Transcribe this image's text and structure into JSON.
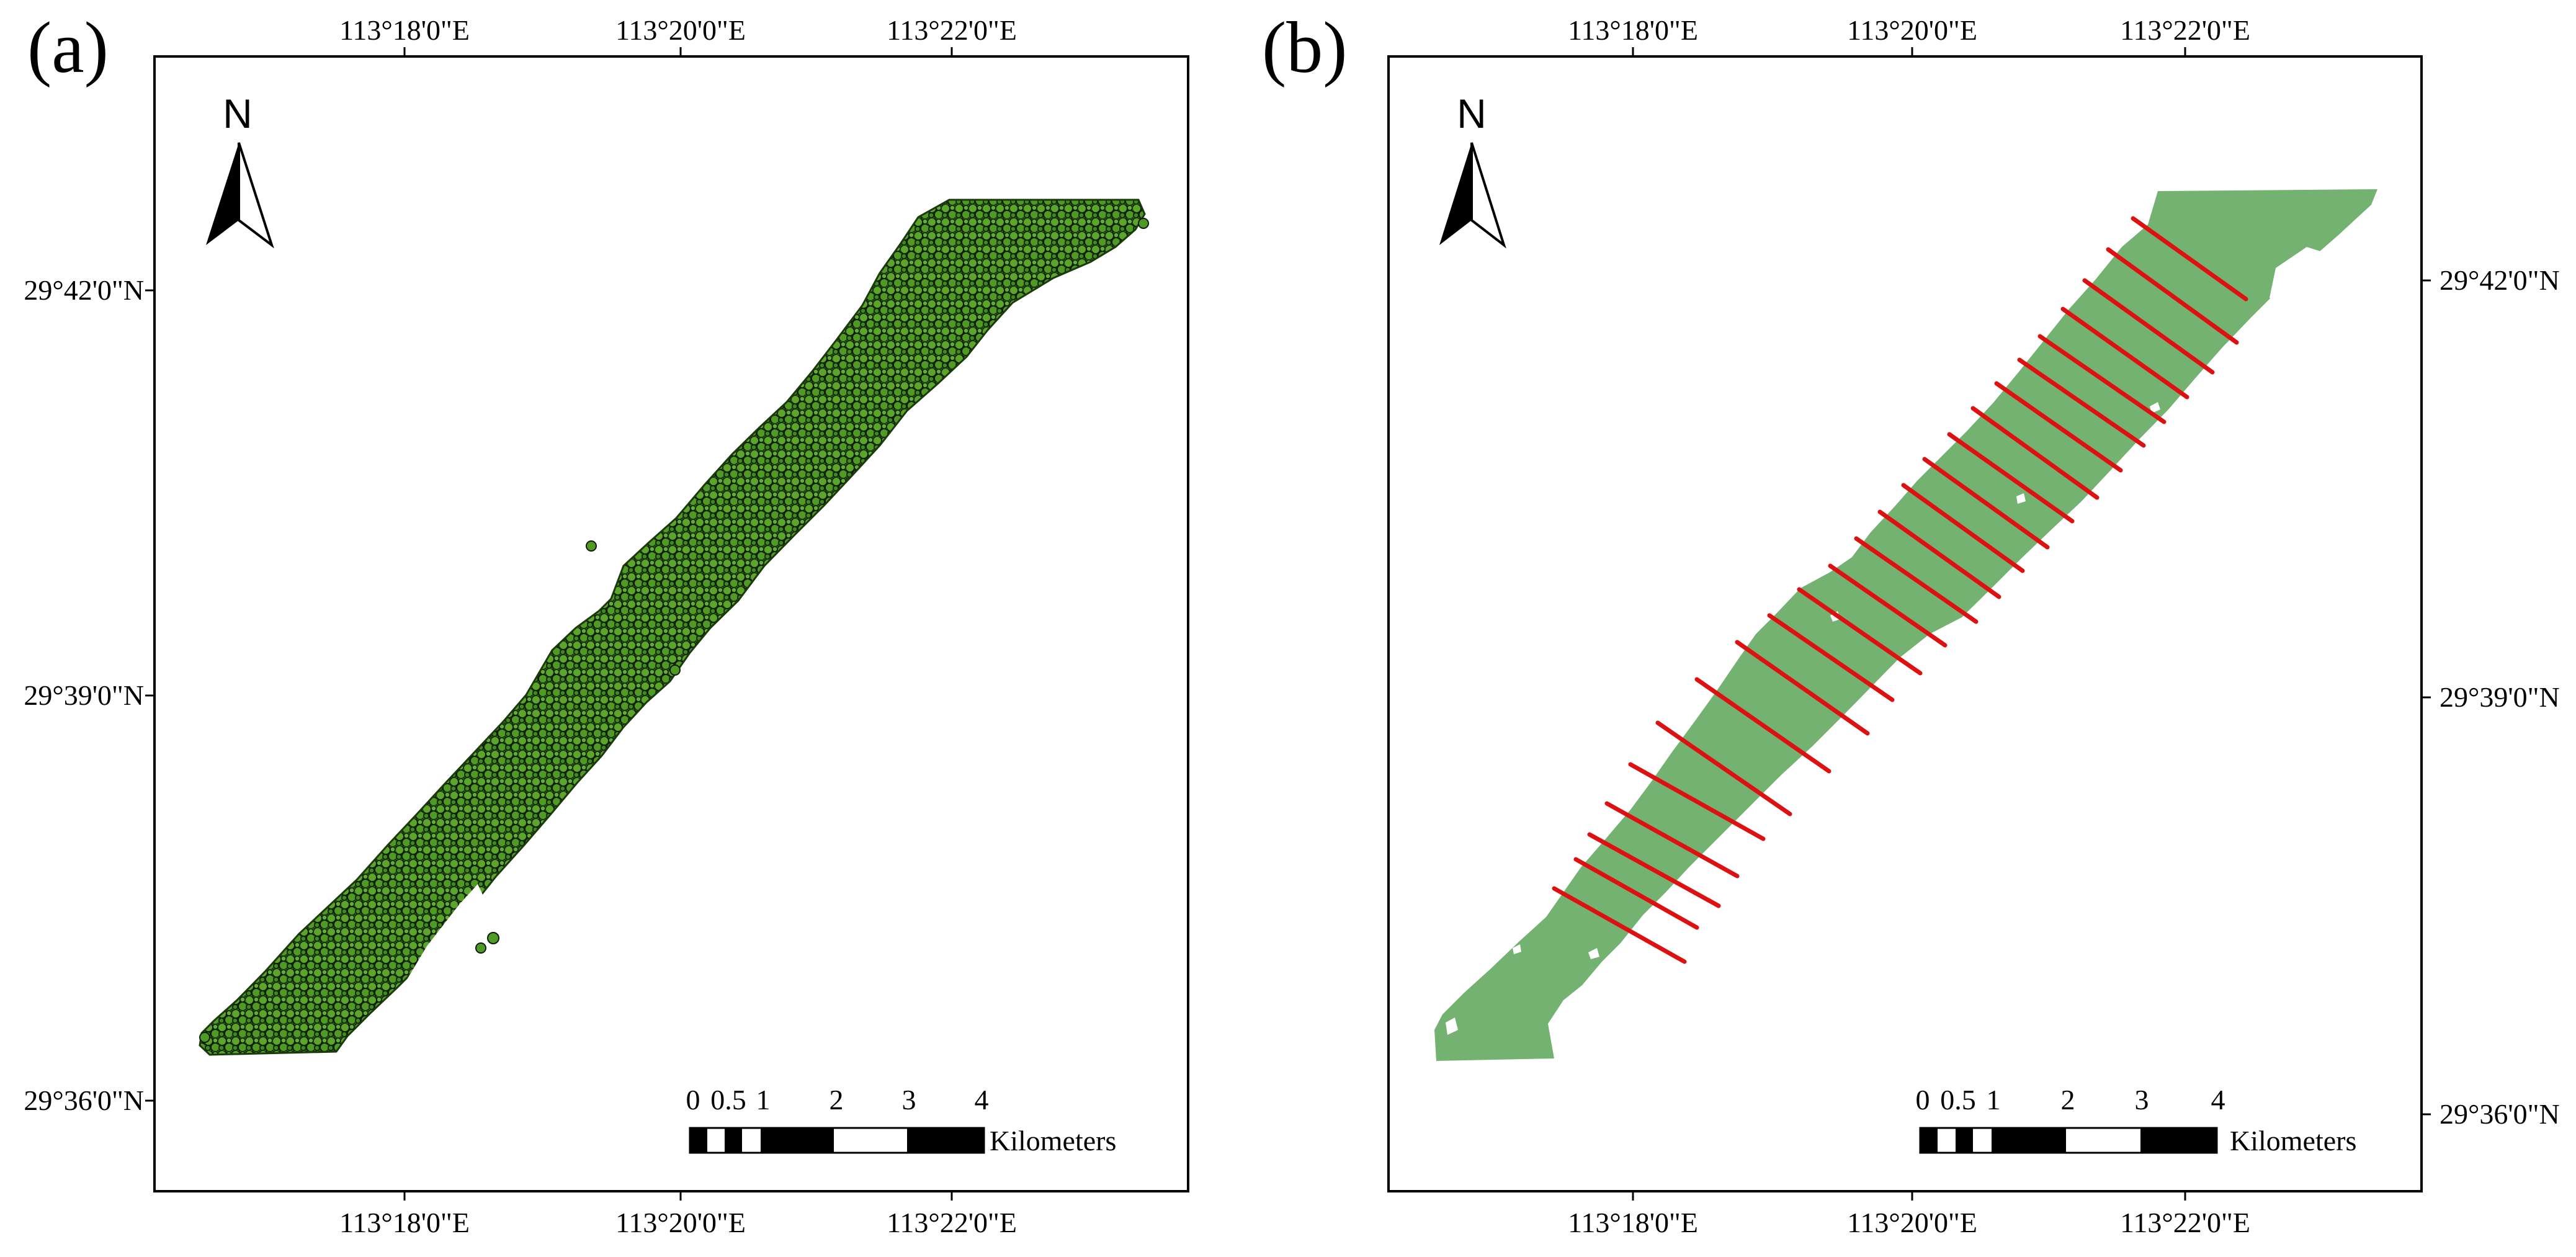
{
  "panels": [
    {
      "id": "a",
      "letter": "(a)",
      "top_ticks": [
        "113°18'0\"E",
        "113°20'0\"E",
        "113°22'0\"E"
      ],
      "bottom_ticks": [
        "113°18'0\"E",
        "113°20'0\"E",
        "113°22'0\"E"
      ],
      "left_ticks": [
        "29°42'0\"N",
        "29°39'0\"N",
        "29°36'0\"N"
      ],
      "layer": "survey-points",
      "fill_color": "#4f9a24"
    },
    {
      "id": "b",
      "letter": "(b)",
      "top_ticks": [
        "113°18'0\"E",
        "113°20'0\"E",
        "113°22'0\"E"
      ],
      "bottom_ticks": [
        "113°18'0\"E",
        "113°20'0\"E",
        "113°22'0\"E"
      ],
      "right_ticks": [
        "29°42'0\"N",
        "29°39'0\"N",
        "29°36'0\"N"
      ],
      "layer": "raster-with-cross-sections",
      "fill_color": "#74b272",
      "line_color": "#dd1111"
    }
  ],
  "north_arrow": {
    "label": "N",
    "icon": "north-arrow-icon"
  },
  "scale_bar": {
    "labels": [
      "0",
      "0.5",
      "1",
      "2",
      "3",
      "4"
    ],
    "unit": "Kilometers"
  },
  "colors": {
    "points_fill": "#4f9a24",
    "points_outline": "#0e1d06",
    "raster_fill": "#74b272",
    "transect_line": "#dd1111",
    "frame": "#000000"
  }
}
